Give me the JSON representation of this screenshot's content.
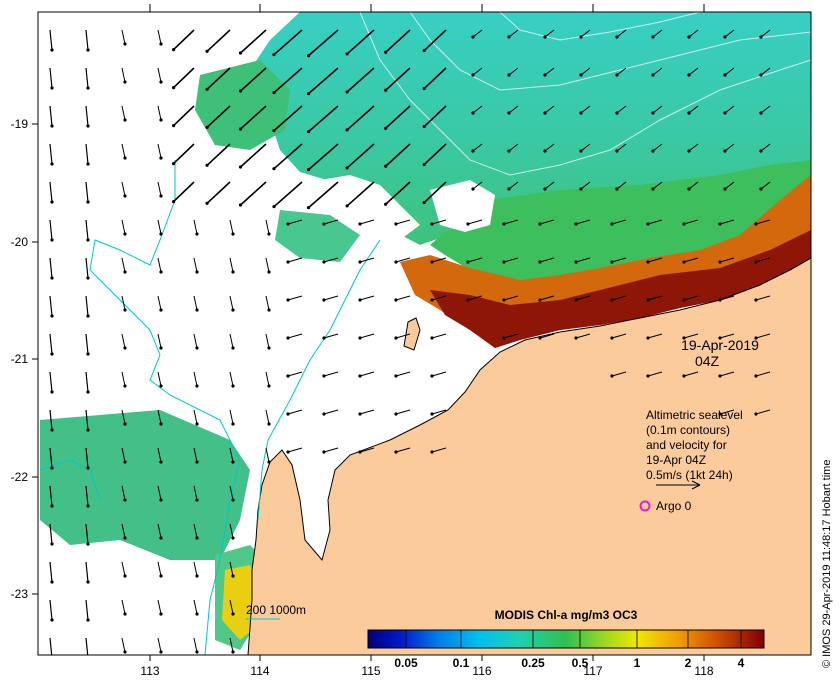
{
  "map": {
    "date_label": "19-Apr-2019",
    "time_label": "04Z",
    "legend": {
      "line1": "Altimetric sealevel",
      "line2": "(0.1m contours)",
      "line3": "and velocity for",
      "line4": "19-Apr 04Z",
      "line5": "0.5m/s (1kt 24h)"
    },
    "argo_label": "Argo 0",
    "depth_label": "200  1000m",
    "credit": "© IMOS 29-Apr-2019 11:48:17 Hobart time",
    "colorbar": {
      "title": "MODIS Chl-a mg/m3 OC3",
      "ticks": [
        "0.05",
        "0.1",
        "0.25",
        "0.5",
        "1",
        "2",
        "4"
      ]
    },
    "x_ticks": [
      "113",
      "114",
      "115",
      "116",
      "117",
      "118"
    ],
    "y_ticks": [
      "-19",
      "-20",
      "-21",
      "-22",
      "-23"
    ],
    "colors": {
      "land": "#fbcb9c",
      "ocean_cyan": "#3cd6c8",
      "ocean_green": "#48c878",
      "coastal_orange": "#d86010",
      "coastal_red": "#9a1a08",
      "contour": "#00c8c8",
      "argo": "#e020e0"
    }
  }
}
